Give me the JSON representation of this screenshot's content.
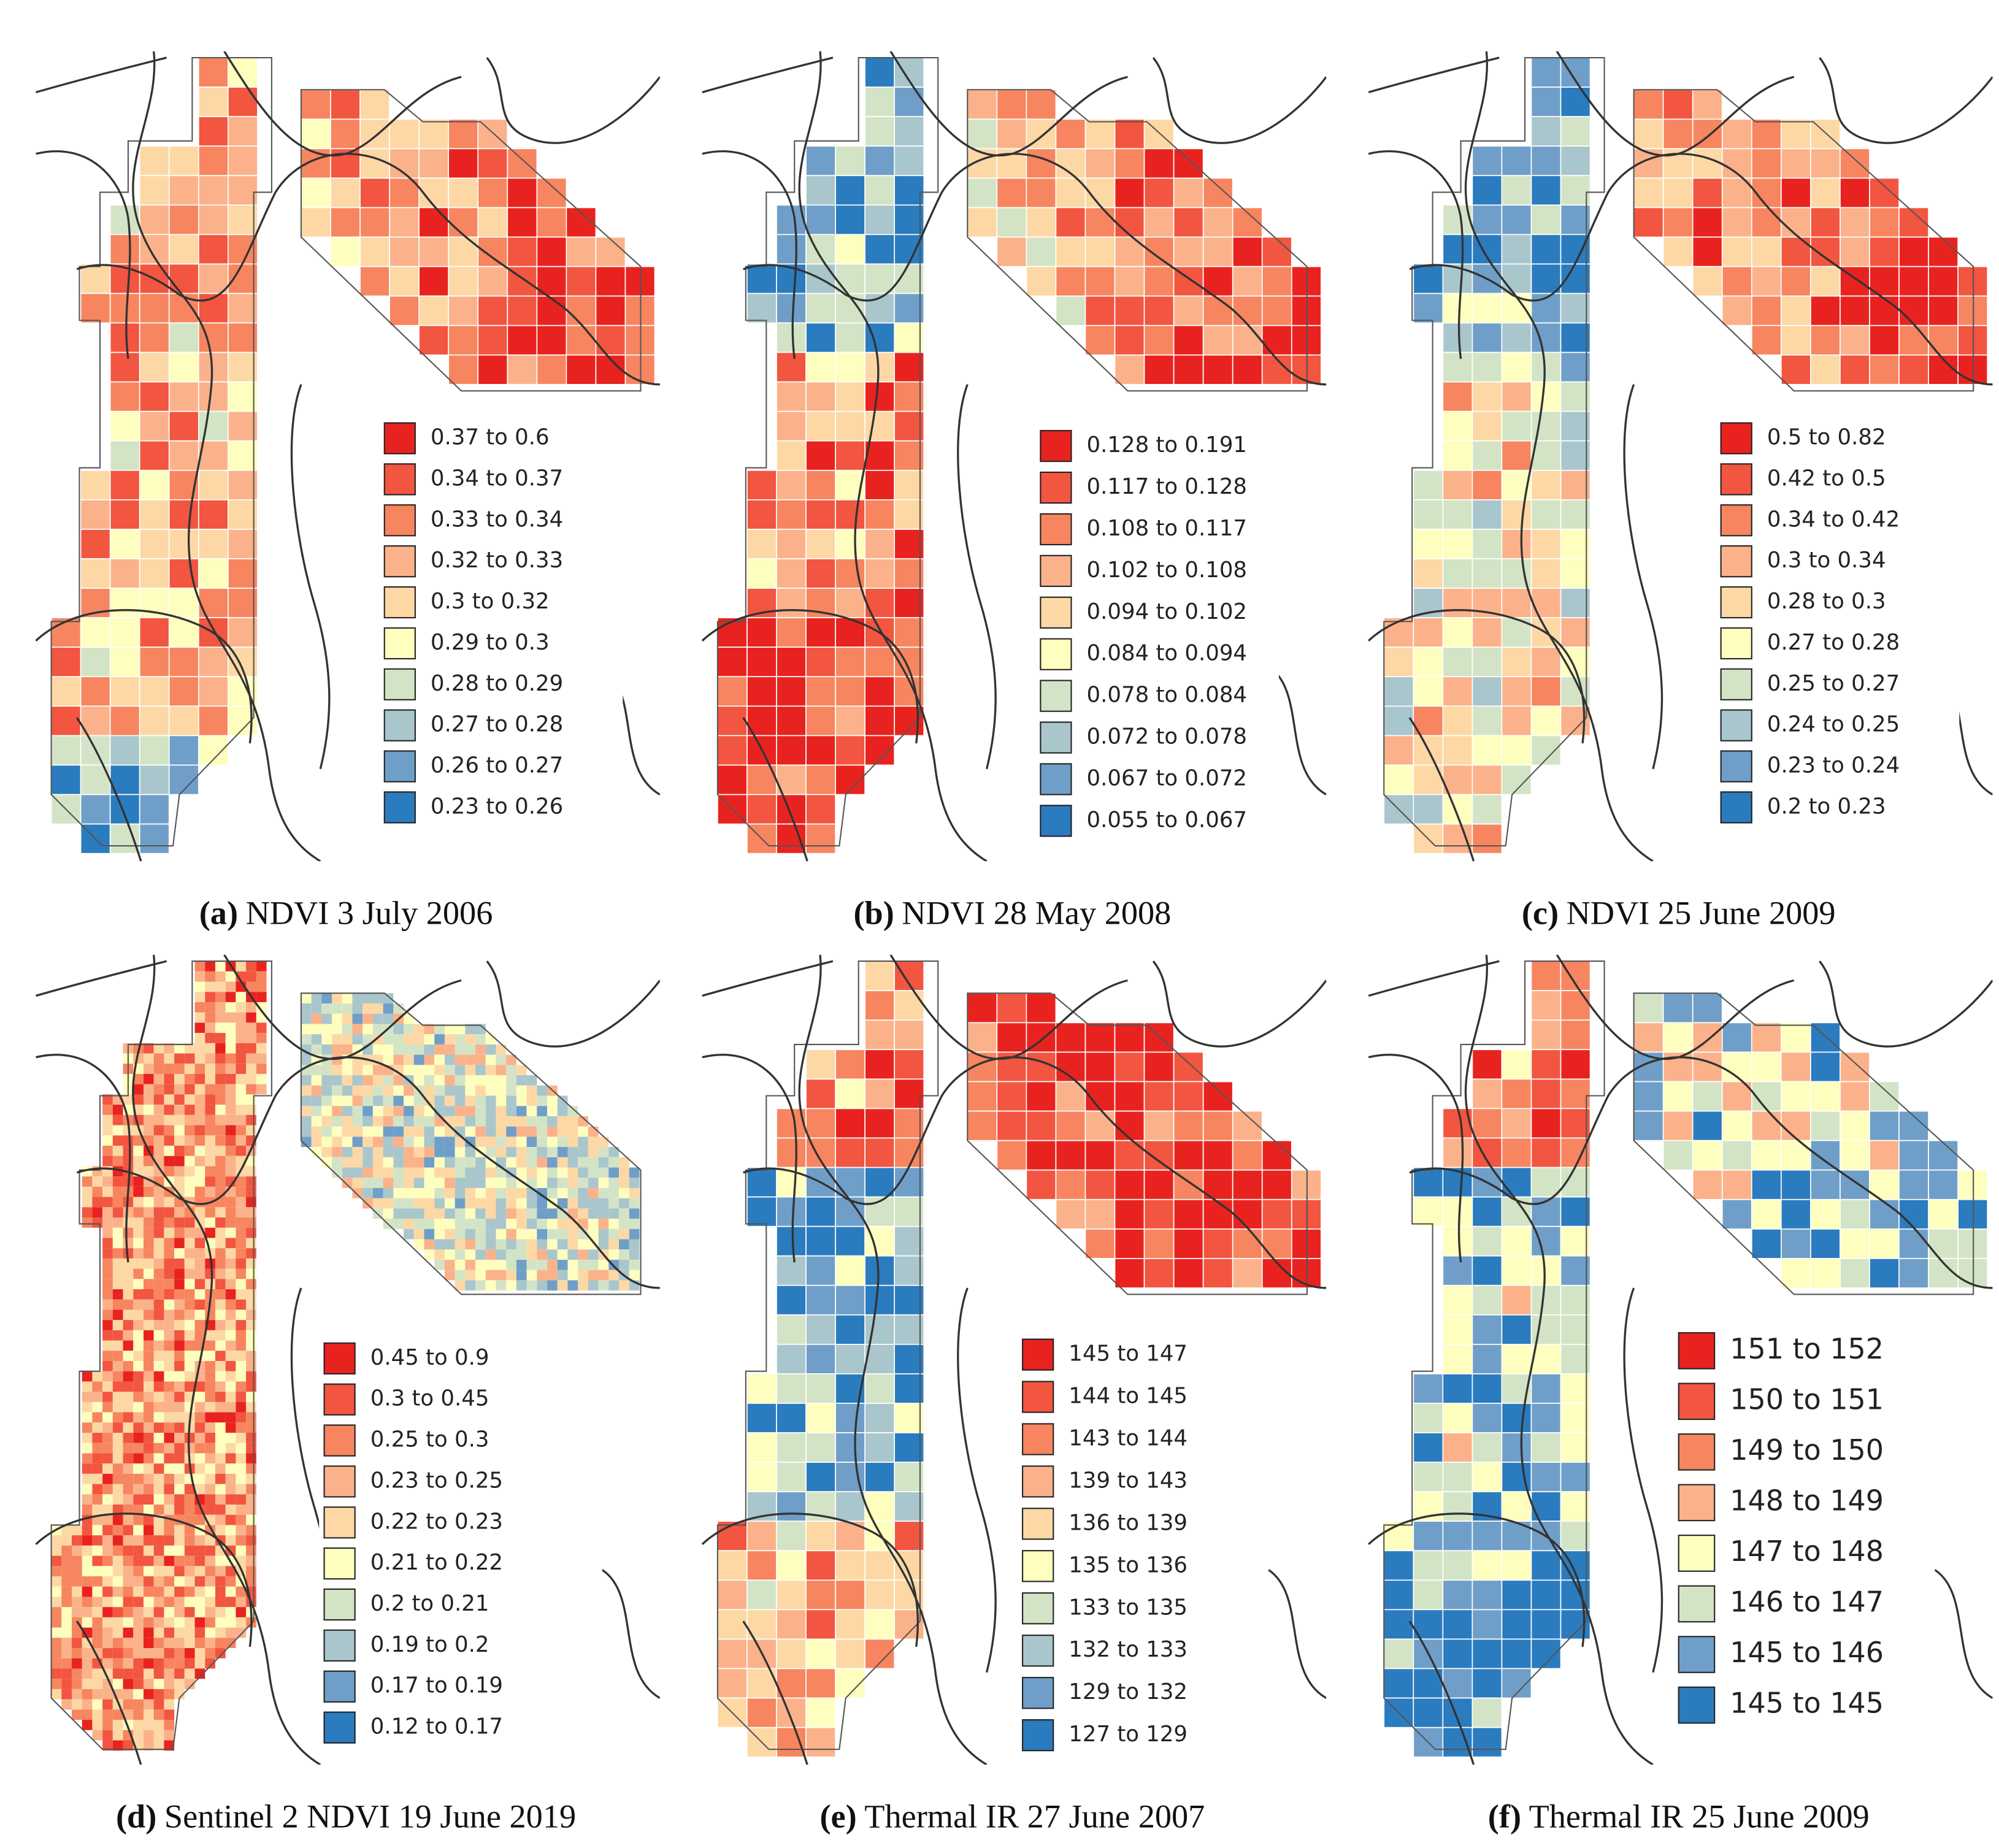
{
  "panels": [
    {
      "label": "(a)",
      "caption": "NDVI 3 July 2006",
      "legend": [
        "0.37 to 0.6",
        "0.34 to 0.37",
        "0.33 to 0.34",
        "0.32 to 0.33",
        "0.3 to 0.32",
        "0.29 to 0.3",
        "0.28 to 0.29",
        "0.27 to 0.28",
        "0.26 to 0.27",
        "0.23 to 0.26"
      ],
      "colors": [
        "#e8231f",
        "#f25540",
        "#f7855f",
        "#fbb28a",
        "#fdd8a5",
        "#fefebe",
        "#d3e4c6",
        "#a9c6cc",
        "#6f9fc8",
        "#2b7bbf"
      ]
    },
    {
      "label": "(b)",
      "caption": "NDVI 28 May 2008",
      "legend": [
        "0.128 to 0.191",
        "0.117 to 0.128",
        "0.108 to 0.117",
        "0.102 to 0.108",
        "0.094 to 0.102",
        "0.084 to 0.094",
        "0.078 to 0.084",
        "0.072 to 0.078",
        "0.067 to 0.072",
        "0.055 to 0.067"
      ],
      "colors": [
        "#e8231f",
        "#f25540",
        "#f7855f",
        "#fbb28a",
        "#fdd8a5",
        "#fefebe",
        "#d3e4c6",
        "#a9c6cc",
        "#6f9fc8",
        "#2b7bbf"
      ]
    },
    {
      "label": "(c)",
      "caption": "NDVI 25 June 2009",
      "legend": [
        "0.5 to 0.82",
        "0.42 to 0.5",
        "0.34 to 0.42",
        "0.3 to 0.34",
        "0.28 to 0.3",
        "0.27 to 0.28",
        "0.25 to 0.27",
        "0.24 to 0.25",
        "0.23 to 0.24",
        "0.2 to 0.23"
      ],
      "colors": [
        "#e8231f",
        "#f25540",
        "#f7855f",
        "#fbb28a",
        "#fdd8a5",
        "#fefebe",
        "#d3e4c6",
        "#a9c6cc",
        "#6f9fc8",
        "#2b7bbf"
      ]
    },
    {
      "label": "(d)",
      "caption": "Sentinel 2 NDVI 19 June 2019",
      "legend": [
        "0.45 to 0.9",
        "0.3 to 0.45",
        "0.25 to 0.3",
        "0.23 to 0.25",
        "0.22 to 0.23",
        "0.21 to 0.22",
        "0.2 to 0.21",
        "0.19 to 0.2",
        "0.17 to 0.19",
        "0.12 to 0.17"
      ],
      "colors": [
        "#e8231f",
        "#f25540",
        "#f7855f",
        "#fbb28a",
        "#fdd8a5",
        "#fefebe",
        "#d3e4c6",
        "#a9c6cc",
        "#6f9fc8",
        "#2b7bbf"
      ]
    },
    {
      "label": "(e)",
      "caption": "Thermal IR 27 June 2007",
      "legend": [
        "145 to 147",
        "144 to 145",
        "143 to 144",
        "139 to 143",
        "136 to 139",
        "135 to 136",
        "133 to 135",
        "132 to 133",
        "129 to 132",
        "127 to 129"
      ],
      "colors": [
        "#e8231f",
        "#f25540",
        "#f7855f",
        "#fbb28a",
        "#fdd8a5",
        "#fefebe",
        "#d3e4c6",
        "#a9c6cc",
        "#6f9fc8",
        "#2b7bbf"
      ]
    },
    {
      "label": "(f)",
      "caption": "Thermal IR 25 June 2009",
      "legend": [
        "151 to 152",
        "150 to 151",
        "149 to 150",
        "148 to 149",
        "147 to 148",
        "146 to 147",
        "145 to 146",
        "145 to 145"
      ],
      "colors": [
        "#e8231f",
        "#f25540",
        "#f7855f",
        "#fbb28a",
        "#fefebe",
        "#d3e4c6",
        "#6f9fc8",
        "#2b7bbf"
      ]
    }
  ]
}
